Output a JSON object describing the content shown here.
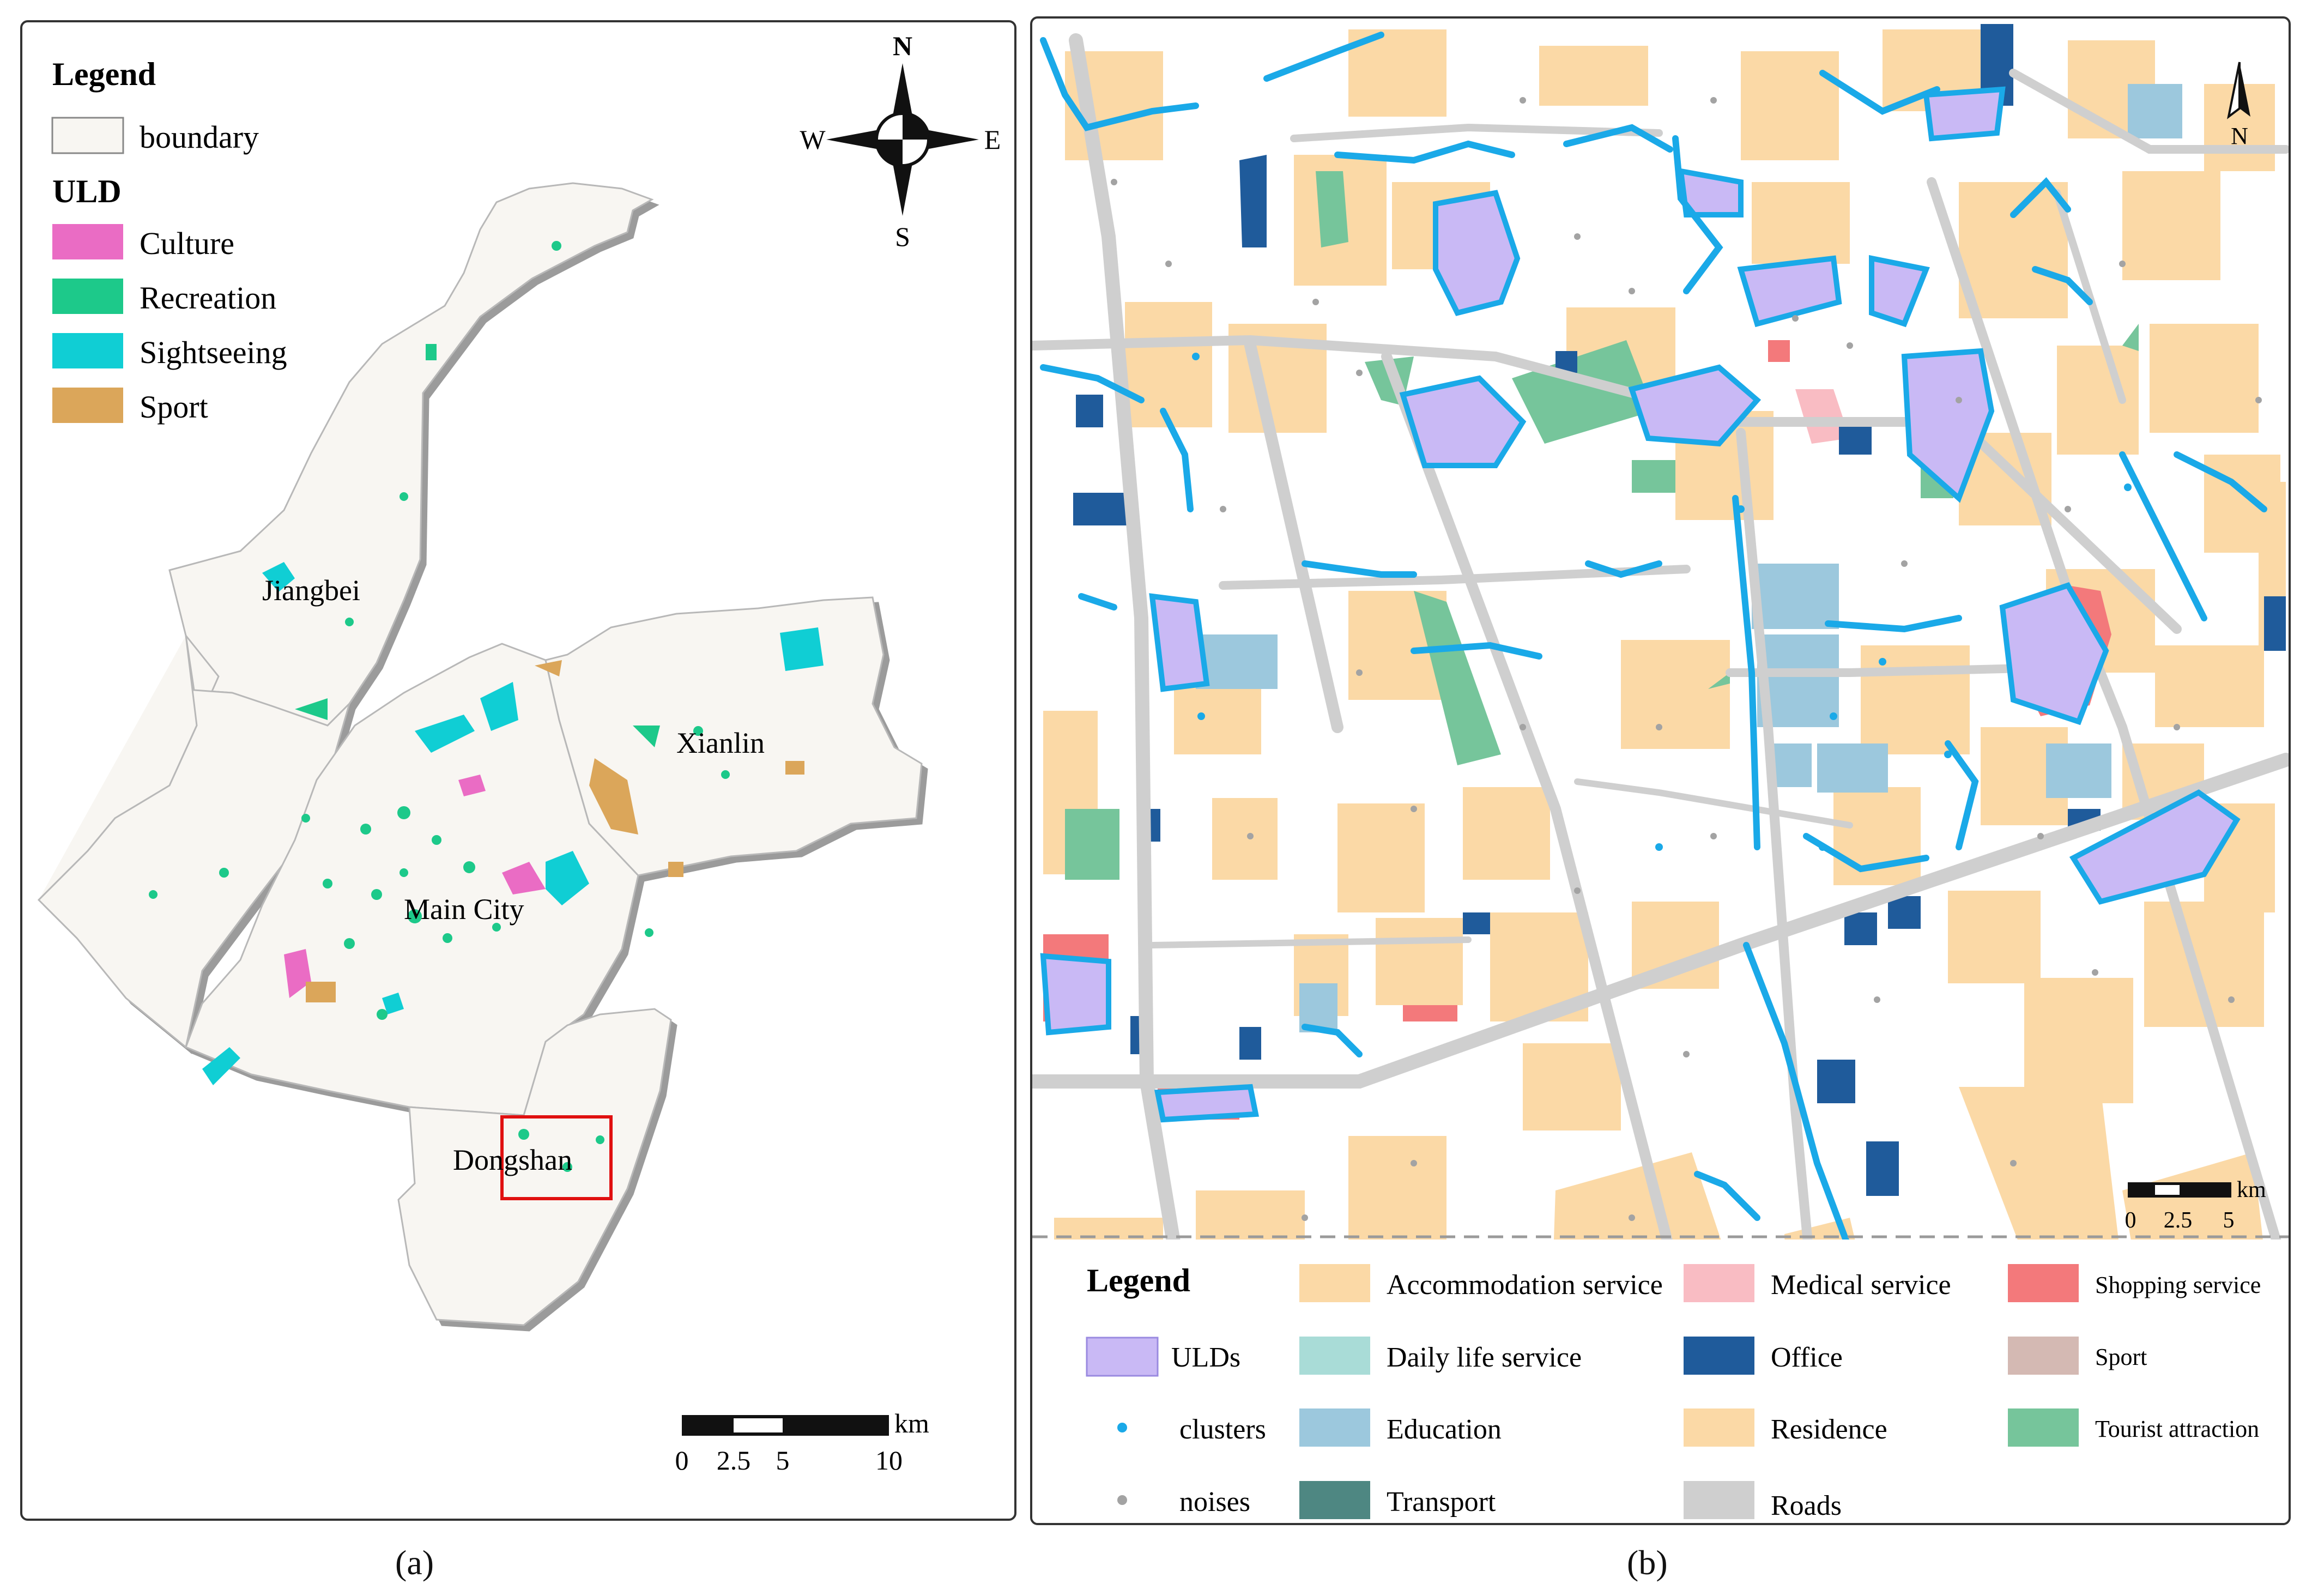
{
  "panel_a": {
    "legend_title": "Legend",
    "boundary_label": "boundary",
    "uld_title": "ULD",
    "uld_items": [
      {
        "label": "Culture",
        "color": "#ea6cc4"
      },
      {
        "label": "Recreation",
        "color": "#1dc98a"
      },
      {
        "label": "Sightseeing",
        "color": "#10ced4"
      },
      {
        "label": "Sport",
        "color": "#dba65a"
      }
    ],
    "districts": [
      "Jiangbei",
      "Xianlin",
      "Main City",
      "Dongshan"
    ],
    "compass": {
      "n": "N",
      "s": "S",
      "e": "E",
      "w": "W"
    },
    "scale": {
      "unit": "km",
      "ticks": [
        "0",
        "2.5",
        "5",
        "10"
      ]
    },
    "caption": "(a)"
  },
  "panel_b": {
    "north": "N",
    "scale": {
      "unit": "km",
      "ticks": [
        "0",
        "2.5",
        "5"
      ]
    },
    "legend_title": "Legend",
    "legend_items": [
      {
        "label": "Accommodation service",
        "color": "#fbd9a6"
      },
      {
        "label": "Medical service",
        "color": "#f9bcc3"
      },
      {
        "label": "Shopping service",
        "color": "#f3797b"
      },
      {
        "label": "ULDs",
        "color": "#c9b9f5"
      },
      {
        "label": "Daily life service",
        "color": "#a9dcd7"
      },
      {
        "label": "Office",
        "color": "#1f5b9b"
      },
      {
        "label": "Sport",
        "color": "#d4b9b3"
      },
      {
        "label": "clusters",
        "color": "#1aa9e8"
      },
      {
        "label": "Education",
        "color": "#9cc8dd"
      },
      {
        "label": "Residence",
        "color": "#fbd9a6"
      },
      {
        "label": "Tourist attraction",
        "color": "#76c59b"
      },
      {
        "label": "noises",
        "color": "#a3a3a3"
      },
      {
        "label": "Transport",
        "color": "#4e8782"
      },
      {
        "label": "Roads",
        "color": "#cfcfcf"
      }
    ],
    "caption": "(b)"
  }
}
